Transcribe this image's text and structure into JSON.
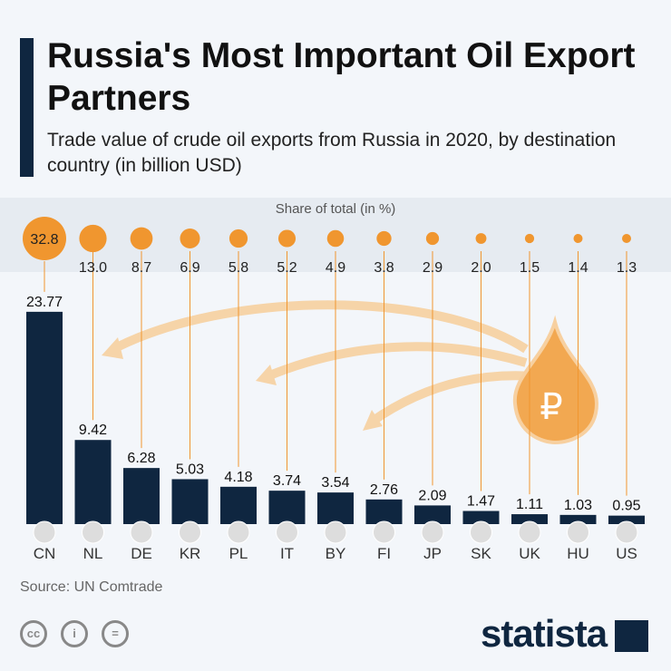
{
  "title": "Russia's Most Important Oil Export Partners",
  "subtitle": "Trade value of crude oil exports from Russia in 2020, by destination country (in billion USD)",
  "share_title": "Share of total (in %)",
  "source": "Source: UN Comtrade",
  "logo": "statista",
  "license_icons": [
    "cc-icon",
    "attribution-icon",
    "no-derivatives-icon"
  ],
  "colors": {
    "bar": "#0f2640",
    "share": "#f0962f",
    "arrows": "#f6d4a8"
  },
  "chart_data": {
    "type": "bar",
    "categories": [
      "CN",
      "NL",
      "DE",
      "KR",
      "PL",
      "IT",
      "BY",
      "FI",
      "JP",
      "SK",
      "UK",
      "HU",
      "US"
    ],
    "values": [
      23.77,
      9.42,
      6.28,
      5.03,
      4.18,
      3.74,
      3.54,
      2.76,
      2.09,
      1.47,
      1.11,
      1.03,
      0.95
    ],
    "value_labels": [
      "23.77",
      "9.42",
      "6.28",
      "5.03",
      "4.18",
      "3.74",
      "3.54",
      "2.76",
      "2.09",
      "1.47",
      "1.11",
      "1.03",
      "0.95"
    ],
    "share_of_total": [
      32.8,
      13.0,
      8.7,
      6.9,
      5.8,
      5.2,
      4.9,
      3.8,
      2.9,
      2.0,
      1.5,
      1.4,
      1.3
    ],
    "share_labels": [
      "32.8",
      "13.0",
      "8.7",
      "6.9",
      "5.8",
      "5.2",
      "4.9",
      "3.8",
      "2.9",
      "2.0",
      "1.5",
      "1.4",
      "1.3"
    ],
    "title": "Russia's Most Important Oil Export Partners",
    "xlabel": "",
    "ylabel": "",
    "grid": false
  }
}
